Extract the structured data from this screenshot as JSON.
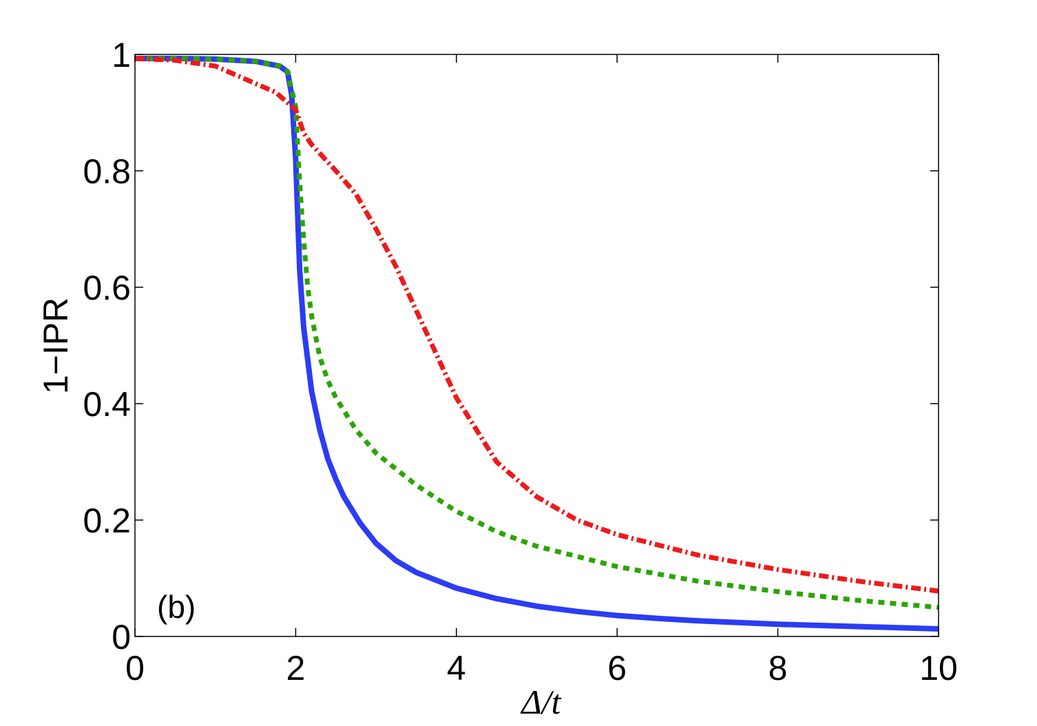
{
  "chart_data": {
    "type": "line",
    "title": "",
    "xlabel": "Δ/t",
    "ylabel": "1−IPR",
    "xlim": [
      0,
      10
    ],
    "ylim": [
      0,
      1
    ],
    "x_ticks": [
      "0",
      "2",
      "4",
      "6",
      "8",
      "10"
    ],
    "y_ticks": [
      "0",
      "0.2",
      "0.4",
      "0.6",
      "0.8",
      "1"
    ],
    "annotation": "(b)",
    "grid": false,
    "legend": "none",
    "series": [
      {
        "color": "#2b3cf5",
        "style": "solid",
        "x": [
          0,
          0.5,
          1,
          1.5,
          1.8,
          1.9,
          1.95,
          2.0,
          2.05,
          2.1,
          2.2,
          2.3,
          2.4,
          2.5,
          2.6,
          2.8,
          3.0,
          3.25,
          3.5,
          4.0,
          4.5,
          5.0,
          5.5,
          6.0,
          6.5,
          7.0,
          8.0,
          9.0,
          10.0
        ],
        "y": [
          0.993,
          0.993,
          0.992,
          0.988,
          0.98,
          0.97,
          0.93,
          0.82,
          0.63,
          0.53,
          0.42,
          0.355,
          0.305,
          0.27,
          0.24,
          0.195,
          0.16,
          0.13,
          0.11,
          0.083,
          0.065,
          0.052,
          0.043,
          0.036,
          0.031,
          0.027,
          0.021,
          0.017,
          0.013
        ]
      },
      {
        "color": "#2ba500",
        "style": "dotted",
        "x": [
          0,
          0.5,
          1,
          1.5,
          1.8,
          1.9,
          2.0,
          2.05,
          2.1,
          2.15,
          2.2,
          2.3,
          2.4,
          2.5,
          2.75,
          3.0,
          3.5,
          4.0,
          4.5,
          5.0,
          6.0,
          7.0,
          8.0,
          9.0,
          10.0
        ],
        "y": [
          0.993,
          0.993,
          0.992,
          0.988,
          0.98,
          0.97,
          0.91,
          0.78,
          0.68,
          0.6,
          0.55,
          0.48,
          0.44,
          0.41,
          0.355,
          0.315,
          0.26,
          0.215,
          0.18,
          0.155,
          0.12,
          0.095,
          0.077,
          0.062,
          0.05
        ]
      },
      {
        "color": "#ee1a1a",
        "style": "dashdot",
        "x": [
          0,
          0.5,
          1,
          1.25,
          1.5,
          1.75,
          2.0,
          2.1,
          2.2,
          2.5,
          2.75,
          3.0,
          3.25,
          3.5,
          4.0,
          4.5,
          5.0,
          5.5,
          6.0,
          7.0,
          8.0,
          9.0,
          10.0
        ],
        "y": [
          0.993,
          0.99,
          0.98,
          0.965,
          0.95,
          0.935,
          0.905,
          0.865,
          0.845,
          0.8,
          0.76,
          0.7,
          0.635,
          0.56,
          0.41,
          0.3,
          0.24,
          0.2,
          0.175,
          0.14,
          0.115,
          0.095,
          0.078
        ]
      }
    ]
  }
}
